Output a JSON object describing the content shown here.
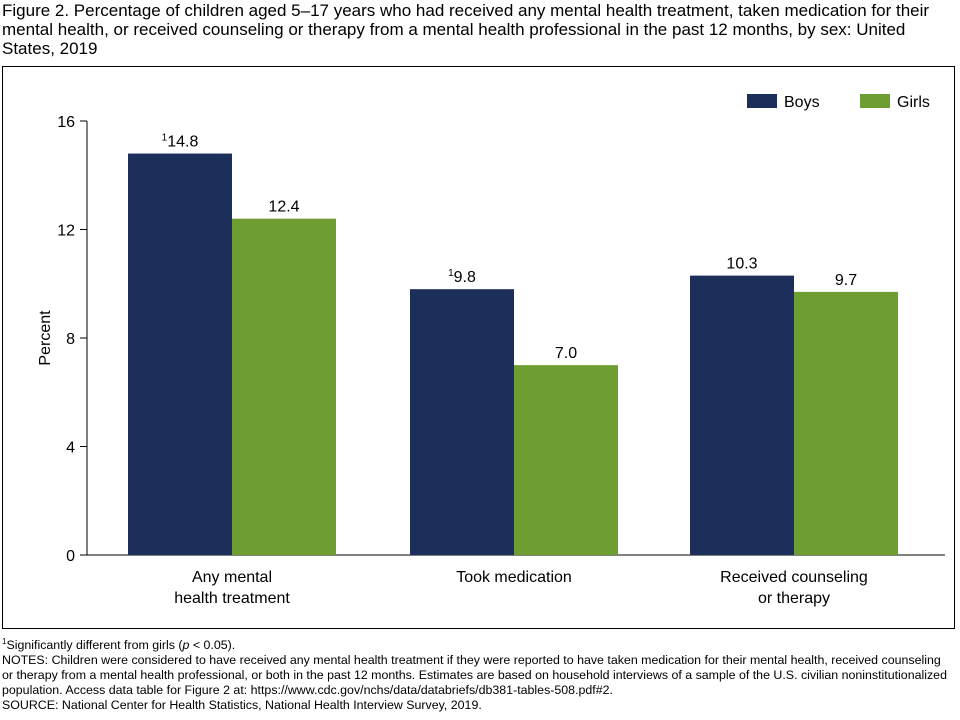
{
  "figure": {
    "title": "Figure 2. Percentage of children aged 5–17 years who had received any mental health treatment, taken medication for their mental health, or received counseling or therapy from a mental health professional in the past 12 months, by sex: United States, 2019"
  },
  "chart_data": {
    "type": "bar",
    "title": "",
    "xlabel": "",
    "ylabel": "Percent",
    "ylim": [
      0,
      16
    ],
    "yticks": [
      0,
      4,
      8,
      12,
      16
    ],
    "grid": false,
    "legend_position": "top-right",
    "categories": [
      [
        "Any mental",
        "health treatment"
      ],
      [
        "Took medication"
      ],
      [
        "Received counseling",
        "or therapy"
      ]
    ],
    "series": [
      {
        "name": "Boys",
        "color": "#1c2f5a",
        "values": [
          14.8,
          9.8,
          10.3
        ],
        "labels": [
          "14.8",
          "9.8",
          "10.3"
        ],
        "label_superscripts": [
          "1",
          "1",
          ""
        ]
      },
      {
        "name": "Girls",
        "color": "#6e9e31",
        "values": [
          12.4,
          7.0,
          9.7
        ],
        "labels": [
          "12.4",
          "7.0",
          "9.7"
        ],
        "label_superscripts": [
          "",
          "",
          ""
        ]
      }
    ]
  },
  "notes": {
    "footnote_marker": "1",
    "footnote_text_before": "Significantly different from girls (",
    "footnote_p": "p",
    "footnote_text_after": " < 0.05).",
    "notes_text": "NOTES: Children were considered to have received any mental health treatment if they were reported to have taken medication for their mental health, received counseling or therapy from a mental health professional, or both in the past 12 months. Estimates are based on household interviews of a sample of the U.S. civilian noninstitutionalized population. Access data table for Figure 2 at: https://www.cdc.gov/nchs/data/databriefs/db381-tables-508.pdf#2.",
    "source_text": "SOURCE: National Center for Health Statistics, National Health Interview Survey, 2019."
  }
}
